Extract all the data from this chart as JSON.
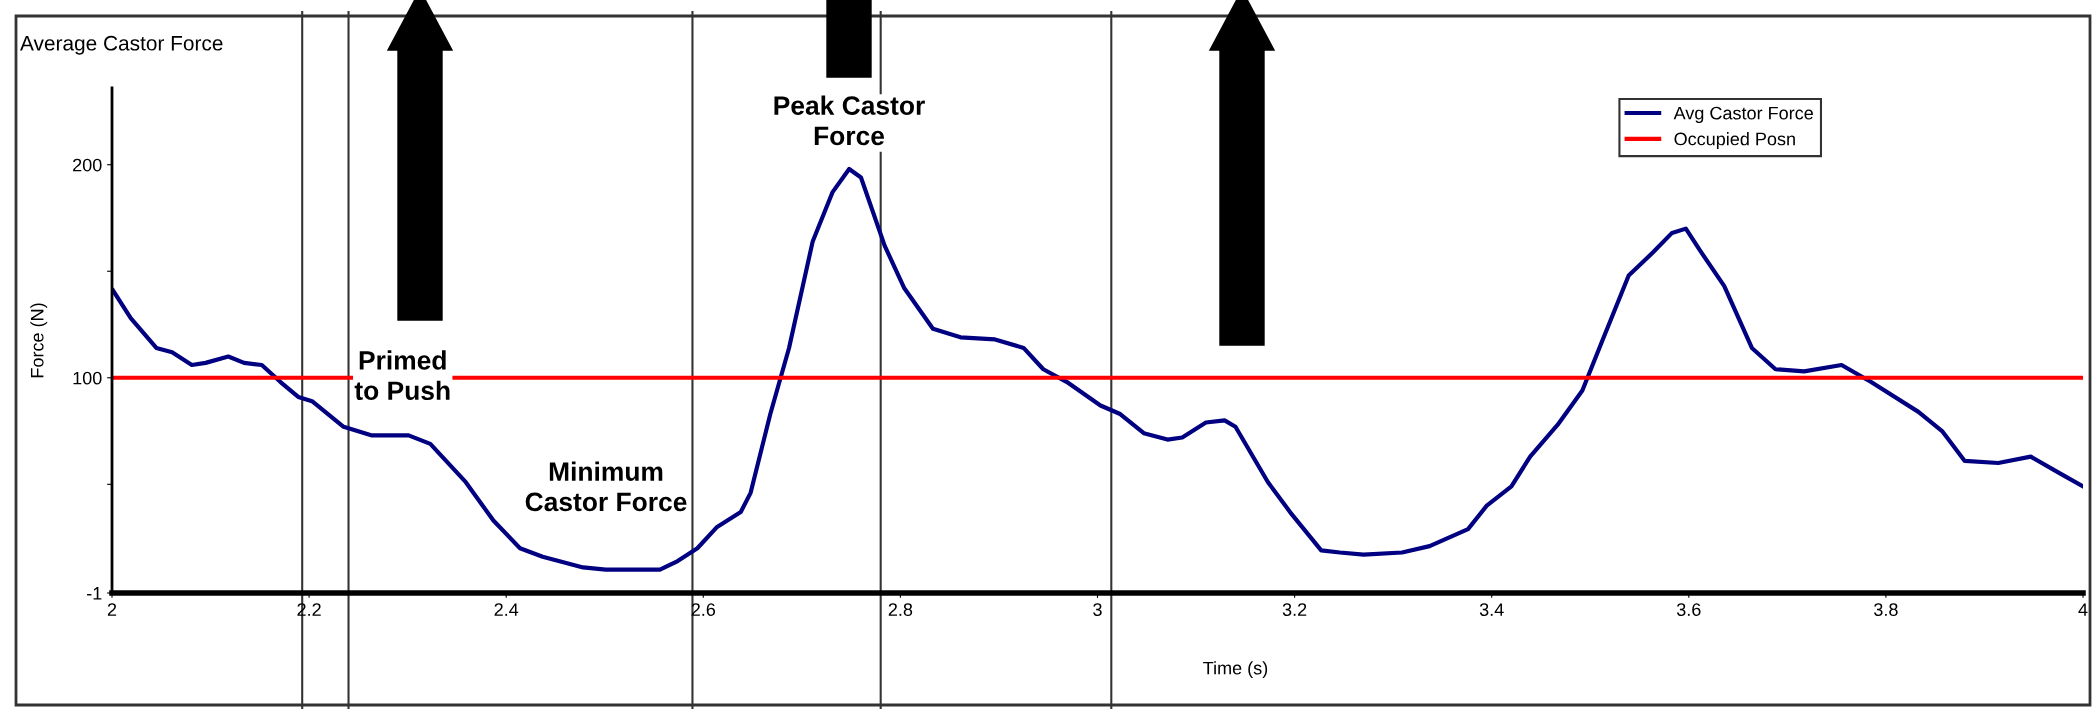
{
  "chart_data": {
    "type": "line",
    "title": "Average Castor Force",
    "xlabel": "Time (s)",
    "ylabel": "Force (N)",
    "xlim": [
      2,
      4
    ],
    "xticks": [
      2,
      2.2,
      2.4,
      2.6,
      2.8,
      3,
      3.2,
      3.4,
      3.6,
      3.8,
      4
    ],
    "ylim": [
      -1,
      236
    ],
    "yticks": [
      -1,
      {
        "value": 50,
        "label": null
      },
      100,
      {
        "value": 150,
        "label": null
      },
      200
    ],
    "legend": "top right",
    "grid": false,
    "series": [
      {
        "name": "Avg Castor Force",
        "color": "#000080",
        "x": [
          2.001,
          2.019,
          2.045,
          2.061,
          2.081,
          2.095,
          2.118,
          2.134,
          2.152,
          2.171,
          2.189,
          2.203,
          2.235,
          2.263,
          2.301,
          2.323,
          2.359,
          2.387,
          2.414,
          2.437,
          2.478,
          2.501,
          2.556,
          2.574,
          2.594,
          2.614,
          2.638,
          2.648,
          2.668,
          2.687,
          2.711,
          2.731,
          2.748,
          2.76,
          2.784,
          2.804,
          2.833,
          2.861,
          2.896,
          2.925,
          2.945,
          2.969,
          3.003,
          3.023,
          3.047,
          3.071,
          3.086,
          3.11,
          3.129,
          3.14,
          3.173,
          3.197,
          3.227,
          3.246,
          3.27,
          3.309,
          3.337,
          3.376,
          3.395,
          3.42,
          3.439,
          3.467,
          3.492,
          3.511,
          3.539,
          3.564,
          3.583,
          3.597,
          3.611,
          3.636,
          3.664,
          3.688,
          3.717,
          3.755,
          3.785,
          3.833,
          3.857,
          3.88,
          3.914,
          3.947,
          3.977,
          4.0
        ],
        "values": [
          141,
          128,
          114,
          112,
          106,
          107,
          110,
          107,
          106,
          98,
          91,
          89,
          77,
          73,
          73,
          69,
          51,
          33,
          20,
          16,
          11,
          10,
          10,
          14,
          20,
          30,
          37,
          46,
          83,
          114,
          164,
          187,
          198,
          194,
          162,
          142,
          123,
          119,
          118,
          114,
          104,
          98,
          87,
          83,
          74,
          71,
          72,
          79,
          80,
          77,
          51,
          36,
          19,
          18,
          17,
          18,
          21,
          29,
          40,
          49,
          63,
          78,
          94,
          116,
          148,
          159,
          168,
          170,
          160,
          143,
          114,
          104,
          103,
          106,
          98,
          84,
          75,
          61,
          60,
          63,
          55,
          49
        ]
      },
      {
        "name": "Occupied Posn",
        "color": "#ff0000",
        "x": [
          2,
          4
        ],
        "values": [
          100,
          100
        ]
      }
    ],
    "ref_lines": [
      {
        "axis": "x",
        "value": 2.193,
        "color": "#333333"
      },
      {
        "axis": "x",
        "value": 2.24,
        "color": "#333333"
      },
      {
        "axis": "x",
        "value": 2.589,
        "color": "#333333"
      },
      {
        "axis": "x",
        "value": 2.78,
        "color": "#333333"
      },
      {
        "axis": "x",
        "value": 3.014,
        "color": "#333333"
      }
    ],
    "annotations": [
      {
        "text": "Primed\nto Push",
        "x": 2.295,
        "y": 100
      },
      "Minimum\nCastor Force",
      "Peak Castor\nForce"
    ]
  }
}
